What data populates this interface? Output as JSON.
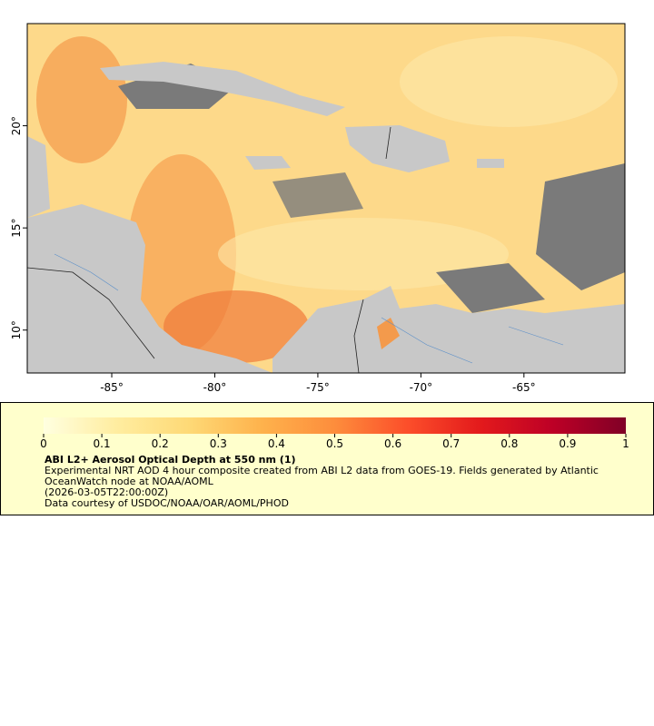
{
  "map": {
    "xlim": [
      -89.1,
      -60.1
    ],
    "ylim": [
      7.9,
      25
    ],
    "xticks": [
      {
        "value": -85,
        "label": "-85°"
      },
      {
        "value": -80,
        "label": "-80°"
      },
      {
        "value": -75,
        "label": "-75°"
      },
      {
        "value": -70,
        "label": "-70°"
      },
      {
        "value": -65,
        "label": "-65°"
      }
    ],
    "yticks": [
      {
        "value": 10,
        "label": "10°"
      },
      {
        "value": 15,
        "label": "15°"
      },
      {
        "value": 20,
        "label": "20°"
      }
    ],
    "colorbar": {
      "lim": [
        0,
        1
      ],
      "ticks": [
        0,
        0.1,
        0.2,
        0.3,
        0.4,
        0.5,
        0.6,
        0.7,
        0.8,
        0.9,
        1
      ],
      "colors": [
        "#ffffe0",
        "#ffeda0",
        "#fed976",
        "#feb24c",
        "#fd8d3c",
        "#fc4e2a",
        "#e31a1c",
        "#bd0026",
        "#800026"
      ]
    },
    "title": "ABI L2+ Aerosol Optical Depth at 550 nm (1)",
    "description": "Experimental NRT AOD 4 hour composite created from ABI L2 data from GOES-19. Fields generated by Atlantic OceanWatch node at NOAA/AOML",
    "time": "(2026-03-05T22:00:00Z)",
    "credit": "Data courtesy of USDOC/NOAA/OAR/AOML/PHOD"
  }
}
